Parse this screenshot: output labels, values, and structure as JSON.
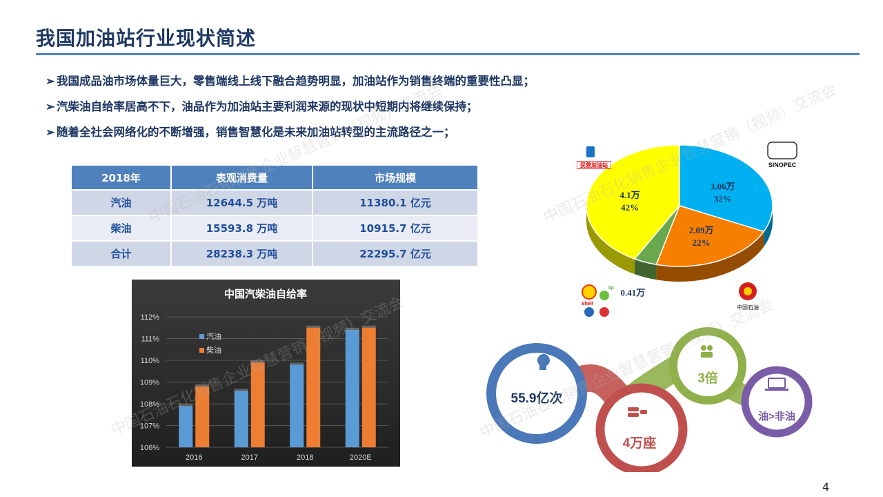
{
  "title": "我国加油站行业现状简述",
  "bullets": [
    "我国成品油市场体量巨大，零售端线上线下融合趋势明显，加油站作为销售终端的重要性凸显；",
    "汽柴油自给率居高不下，油品作为加油站主要利润来源的现状中短期内将继续保持；",
    "随着全社会网络化的不断增强，销售智慧化是未来加油站转型的主流路径之一；"
  ],
  "table": {
    "headers": [
      "2018年",
      "表观消费量",
      "市场规模"
    ],
    "rows": [
      [
        "汽油",
        "12644.5 万吨",
        "11380.1 亿元"
      ],
      [
        "柴油",
        "15593.8 万吨",
        "10915.7 亿元"
      ],
      [
        "合计",
        "28238.3 万吨",
        "22295.7 亿元"
      ]
    ]
  },
  "chart_data": [
    {
      "type": "bar",
      "title": "中国汽柴油自给率",
      "categories": [
        "2016",
        "2017",
        "2018",
        "2020E"
      ],
      "series": [
        {
          "name": "汽油",
          "values": [
            107.9,
            108.6,
            109.8,
            111.4
          ],
          "color": "#5b9bd5"
        },
        {
          "name": "柴油",
          "values": [
            108.8,
            109.9,
            111.5,
            111.5
          ],
          "color": "#ed7d31"
        }
      ],
      "yticks": [
        "112%",
        "111%",
        "110%",
        "109%",
        "108%",
        "107%",
        "106%"
      ],
      "ylim": [
        106,
        112
      ],
      "legend_position": "left-inside"
    },
    {
      "type": "pie",
      "slices": [
        {
          "value": 32,
          "label": "3.06万",
          "pct": "32%",
          "color": "#00b0f0"
        },
        {
          "value": 22,
          "label": "2.09万",
          "pct": "22%",
          "color": "#f77f00"
        },
        {
          "value": 4,
          "label": "0.41万",
          "pct": "4%",
          "color": "#6aa84f"
        },
        {
          "value": 42,
          "label": "4.1万",
          "pct": "42%",
          "color": "#ffff00"
        }
      ]
    }
  ],
  "logos": {
    "private": "民营加油站",
    "sinopec": "SINOPEC",
    "shell": "Shell",
    "bp": "bp",
    "cnpc": "中国石油"
  },
  "infographic": {
    "circle1": "55.9亿次",
    "circle2": "4万座",
    "circle3": "3倍",
    "circle4": "油>非油",
    "colors": {
      "c1": "#4a78b8",
      "c2": "#c0504d",
      "c3": "#8fb04a",
      "c4": "#7a5ca8"
    }
  },
  "watermark": "中国石油石化销售企业智慧营销（视频）交流会",
  "page_number": "4"
}
